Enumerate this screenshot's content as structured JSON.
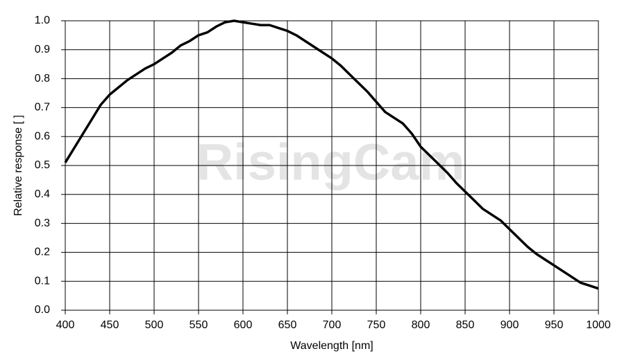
{
  "chart_data": {
    "type": "line",
    "watermark": "RisingCam",
    "x_label": "Wavelength [nm]",
    "y_label": "Relative response [ ]",
    "x": [
      400,
      410,
      420,
      430,
      440,
      450,
      460,
      470,
      480,
      490,
      500,
      510,
      520,
      530,
      540,
      550,
      560,
      570,
      580,
      590,
      600,
      610,
      620,
      630,
      640,
      650,
      660,
      670,
      680,
      690,
      700,
      710,
      720,
      730,
      740,
      750,
      760,
      770,
      780,
      790,
      800,
      810,
      820,
      830,
      840,
      850,
      860,
      870,
      880,
      890,
      900,
      910,
      920,
      930,
      940,
      950,
      960,
      970,
      980,
      990,
      1000
    ],
    "series": [
      {
        "color": "#000000",
        "values": [
          0.51,
          0.56,
          0.61,
          0.66,
          0.71,
          0.745,
          0.77,
          0.795,
          0.815,
          0.835,
          0.85,
          0.87,
          0.89,
          0.915,
          0.93,
          0.95,
          0.96,
          0.98,
          0.995,
          1.0,
          0.995,
          0.99,
          0.985,
          0.985,
          0.975,
          0.965,
          0.95,
          0.93,
          0.91,
          0.89,
          0.87,
          0.845,
          0.815,
          0.785,
          0.755,
          0.72,
          0.685,
          0.665,
          0.645,
          0.61,
          0.565,
          0.535,
          0.505,
          0.475,
          0.44,
          0.41,
          0.38,
          0.35,
          0.33,
          0.31,
          0.28,
          0.25,
          0.22,
          0.195,
          0.175,
          0.155,
          0.135,
          0.115,
          0.095,
          0.085,
          0.075
        ]
      }
    ],
    "xlim": [
      400,
      1000
    ],
    "xticks": [
      400,
      450,
      500,
      550,
      600,
      650,
      700,
      750,
      800,
      850,
      900,
      950,
      1000
    ],
    "ylim": [
      0,
      1
    ],
    "yticks": [
      {
        "value": 0,
        "label": "0.0"
      },
      0.1,
      0.2,
      0.3,
      0.4,
      0.5,
      0.6,
      0.7,
      0.8,
      0.9,
      {
        "value": 1,
        "label": "1.0"
      }
    ],
    "grid": true
  }
}
